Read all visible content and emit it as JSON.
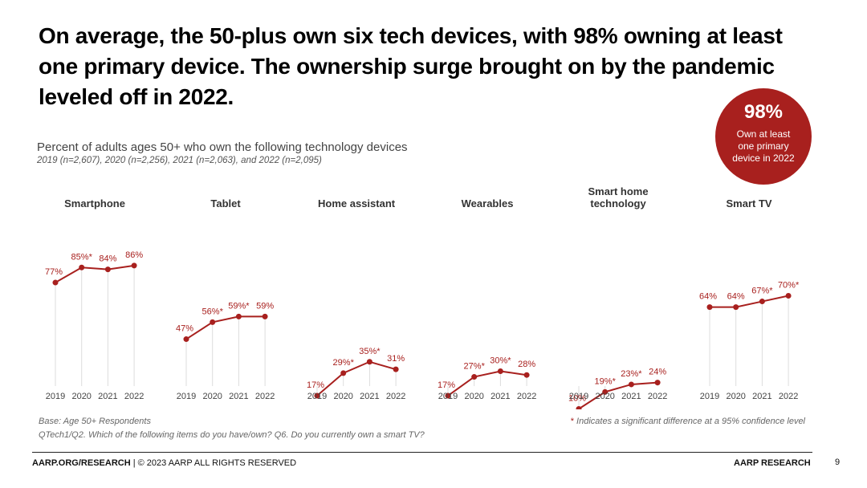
{
  "headline": "On average, the 50-plus own six tech devices, with 98% owning at least one primary device. The ownership surge brought on by the pandemic leveled off in 2022.",
  "subtitle": "Percent of adults ages 50+ who own the following technology devices",
  "sample_sizes": "2019 (n=2,607), 2020 (n=2,256), 2021 (n=2,063), and 2022 (n=2,095)",
  "badge": {
    "value": "98%",
    "text": "Own at least one primary device in 2022"
  },
  "colors": {
    "accent": "#a8201e",
    "gridline": "#dddddd",
    "text": "#333333"
  },
  "chart_data": [
    {
      "type": "line",
      "title": "Smartphone",
      "x": [
        "2019",
        "2020",
        "2021",
        "2022"
      ],
      "values": [
        77,
        85,
        84,
        86
      ],
      "labels": [
        "77%",
        "85%*",
        "84%",
        "86%"
      ]
    },
    {
      "type": "line",
      "title": "Tablet",
      "x": [
        "2019",
        "2020",
        "2021",
        "2022"
      ],
      "values": [
        47,
        56,
        59,
        59
      ],
      "labels": [
        "47%",
        "56%*",
        "59%*",
        "59%"
      ]
    },
    {
      "type": "line",
      "title": "Home assistant",
      "x": [
        "2019",
        "2020",
        "2021",
        "2022"
      ],
      "values": [
        17,
        29,
        35,
        31
      ],
      "labels": [
        "17%",
        "29%*",
        "35%*",
        "31%"
      ]
    },
    {
      "type": "line",
      "title": "Wearables",
      "x": [
        "2019",
        "2020",
        "2021",
        "2022"
      ],
      "values": [
        17,
        27,
        30,
        28
      ],
      "labels": [
        "17%",
        "27%*",
        "30%*",
        "28%"
      ]
    },
    {
      "type": "line",
      "title": "Smart home technology",
      "x": [
        "2019",
        "2020",
        "2021",
        "2022"
      ],
      "values": [
        10,
        19,
        23,
        24
      ],
      "labels": [
        "10%",
        "19%*",
        "23%*",
        "24%"
      ]
    },
    {
      "type": "line",
      "title": "Smart TV",
      "x": [
        "2019",
        "2020",
        "2021",
        "2022"
      ],
      "values": [
        64,
        64,
        67,
        70
      ],
      "labels": [
        "64%",
        "64%",
        "67%*",
        "70%*"
      ]
    }
  ],
  "notes": {
    "base": "Base: Age 50+ Respondents",
    "question": "QTech1/Q2. Which of the following items do you have/own? Q6. Do you currently own a smart TV?",
    "significance_star": "*",
    "significance_text": "Indicates a significant difference at a 95% confidence level"
  },
  "footer": {
    "site": "AARP.ORG/RESEARCH",
    "copyright": " | © 2023 AARP ALL RIGHTS RESERVED",
    "brand": "AARP RESEARCH",
    "page": "9"
  }
}
